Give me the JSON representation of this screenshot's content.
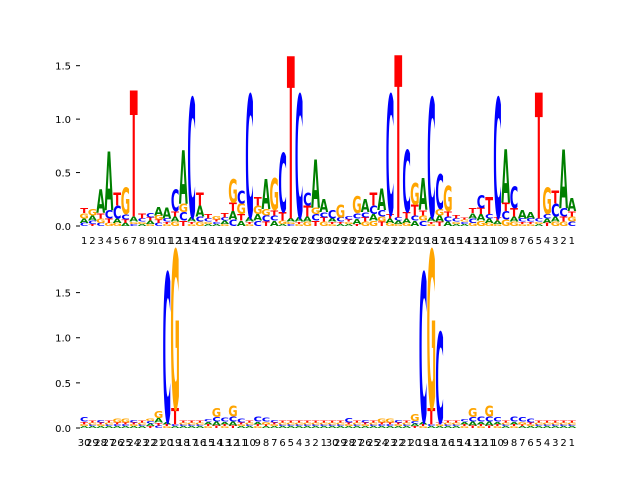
{
  "colors": {
    "A": "#008000",
    "C": "#0000ff",
    "G": "#ffa500",
    "T": "#ff0000",
    "axis": "#000000"
  },
  "chart_data": [
    {
      "type": "sequence-logo",
      "title": "",
      "xlabel": "",
      "ylabel": "",
      "ylim": [
        0,
        1.6
      ],
      "yticks": [
        "0.0",
        "0.5",
        "1.0",
        "1.5"
      ],
      "xtick_labels": [
        "1",
        "2",
        "3",
        "4",
        "5",
        "6",
        "7",
        "8",
        "9",
        "10",
        "11",
        "12",
        "13",
        "14",
        "15",
        "16",
        "17",
        "18",
        "19",
        "20",
        "21",
        "22",
        "23",
        "24",
        "25",
        "26",
        "27",
        "28",
        "29",
        "30",
        "30",
        "29",
        "28",
        "27",
        "26",
        "25",
        "24",
        "23",
        "22",
        "21",
        "20",
        "19",
        "18",
        "17",
        "16",
        "15",
        "14",
        "13",
        "12",
        "11",
        "10",
        "9",
        "8",
        "7",
        "6",
        "5",
        "4",
        "3",
        "2",
        "1"
      ],
      "positions": [
        {
          "A": 0.04,
          "C": 0.03,
          "G": 0.05,
          "T": 0.05
        },
        {
          "A": 0.05,
          "C": 0.03,
          "G": 0.06,
          "T": 0.02
        },
        {
          "A": 0.22,
          "C": 0.03,
          "G": 0.04,
          "T": 0.05
        },
        {
          "A": 0.55,
          "C": 0.08,
          "G": 0.03,
          "T": 0.04
        },
        {
          "A": 0.04,
          "C": 0.12,
          "G": 0.03,
          "T": 0.12
        },
        {
          "A": 0.03,
          "C": 0.05,
          "G": 0.25,
          "T": 0.03
        },
        {
          "A": 0.05,
          "C": 0.02,
          "G": 0.02,
          "T": 1.18
        },
        {
          "A": 0.02,
          "C": 0.03,
          "G": 0.02,
          "T": 0.05
        },
        {
          "A": 0.03,
          "C": 0.04,
          "G": 0.02,
          "T": 0.03
        },
        {
          "A": 0.08,
          "C": 0.03,
          "G": 0.04,
          "T": 0.03
        },
        {
          "A": 0.1,
          "C": 0.03,
          "G": 0.02,
          "T": 0.02
        },
        {
          "A": 0.05,
          "C": 0.2,
          "G": 0.04,
          "T": 0.05
        },
        {
          "A": 0.5,
          "C": 0.08,
          "G": 0.08,
          "T": 0.05
        },
        {
          "A": 0.04,
          "C": 1.12,
          "G": 0.02,
          "T": 0.02
        },
        {
          "A": 0.1,
          "C": 0.05,
          "G": 0.04,
          "T": 0.12
        },
        {
          "A": 0.02,
          "C": 0.03,
          "G": 0.02,
          "T": 0.04
        },
        {
          "A": 0.02,
          "C": 0.02,
          "G": 0.03,
          "T": 0.02
        },
        {
          "A": 0.03,
          "C": 0.03,
          "G": 0.02,
          "T": 0.04
        },
        {
          "A": 0.08,
          "C": 0.06,
          "G": 0.22,
          "T": 0.08
        },
        {
          "A": 0.05,
          "C": 0.12,
          "G": 0.1,
          "T": 0.06
        },
        {
          "A": 0.04,
          "C": 1.15,
          "G": 0.02,
          "T": 0.02
        },
        {
          "A": 0.06,
          "C": 0.05,
          "G": 0.08,
          "T": 0.08
        },
        {
          "A": 0.28,
          "C": 0.06,
          "G": 0.06,
          "T": 0.04
        },
        {
          "A": 0.05,
          "C": 0.05,
          "G": 0.3,
          "T": 0.05
        },
        {
          "A": 0.02,
          "C": 0.55,
          "G": 0.03,
          "T": 0.08
        },
        {
          "A": 0.03,
          "C": 0.02,
          "G": 0.02,
          "T": 1.52
        },
        {
          "A": 0.04,
          "C": 1.15,
          "G": 0.02,
          "T": 0.02
        },
        {
          "A": 0.05,
          "C": 0.12,
          "G": 0.04,
          "T": 0.1
        },
        {
          "A": 0.45,
          "C": 0.06,
          "G": 0.06,
          "T": 0.05
        },
        {
          "A": 0.12,
          "C": 0.05,
          "G": 0.04,
          "T": 0.04
        },
        {
          "A": 0.03,
          "C": 0.08,
          "G": 0.02,
          "T": 0.02
        },
        {
          "A": 0.02,
          "C": 0.04,
          "G": 0.12,
          "T": 0.02
        },
        {
          "A": 0.02,
          "C": 0.03,
          "G": 0.02,
          "T": 0.02
        },
        {
          "A": 0.05,
          "C": 0.05,
          "G": 0.16,
          "T": 0.02
        },
        {
          "A": 0.12,
          "C": 0.05,
          "G": 0.04,
          "T": 0.04
        },
        {
          "A": 0.06,
          "C": 0.08,
          "G": 0.05,
          "T": 0.12
        },
        {
          "A": 0.2,
          "C": 0.06,
          "G": 0.05,
          "T": 0.04
        },
        {
          "A": 0.04,
          "C": 1.12,
          "G": 0.03,
          "T": 0.04
        },
        {
          "A": 0.03,
          "C": 0.03,
          "G": 0.02,
          "T": 1.52
        },
        {
          "A": 0.04,
          "C": 0.58,
          "G": 0.03,
          "T": 0.06
        },
        {
          "A": 0.05,
          "C": 0.05,
          "G": 0.2,
          "T": 0.1
        },
        {
          "A": 0.3,
          "C": 0.05,
          "G": 0.05,
          "T": 0.05
        },
        {
          "A": 0.04,
          "C": 1.12,
          "G": 0.02,
          "T": 0.02
        },
        {
          "A": 0.06,
          "C": 0.32,
          "G": 0.06,
          "T": 0.04
        },
        {
          "A": 0.04,
          "C": 0.05,
          "G": 0.24,
          "T": 0.05
        },
        {
          "A": 0.02,
          "C": 0.03,
          "G": 0.02,
          "T": 0.03
        },
        {
          "A": 0.02,
          "C": 0.02,
          "G": 0.02,
          "T": 0.02
        },
        {
          "A": 0.05,
          "C": 0.04,
          "G": 0.03,
          "T": 0.05
        },
        {
          "A": 0.06,
          "C": 0.12,
          "G": 0.05,
          "T": 0.06
        },
        {
          "A": 0.04,
          "C": 0.04,
          "G": 0.03,
          "T": 0.16
        },
        {
          "A": 0.03,
          "C": 1.12,
          "G": 0.02,
          "T": 0.03
        },
        {
          "A": 0.5,
          "C": 0.08,
          "G": 0.06,
          "T": 0.08
        },
        {
          "A": 0.05,
          "C": 0.2,
          "G": 0.04,
          "T": 0.08
        },
        {
          "A": 0.08,
          "C": 0.03,
          "G": 0.02,
          "T": 0.02
        },
        {
          "A": 0.06,
          "C": 0.03,
          "G": 0.02,
          "T": 0.02
        },
        {
          "A": 0.02,
          "C": 0.03,
          "G": 0.02,
          "T": 1.18
        },
        {
          "A": 0.04,
          "C": 0.04,
          "G": 0.25,
          "T": 0.03
        },
        {
          "A": 0.05,
          "C": 0.12,
          "G": 0.04,
          "T": 0.12
        },
        {
          "A": 0.55,
          "C": 0.08,
          "G": 0.04,
          "T": 0.05
        },
        {
          "A": 0.12,
          "C": 0.04,
          "G": 0.05,
          "T": 0.05
        }
      ]
    },
    {
      "type": "sequence-logo",
      "title": "",
      "xlabel": "",
      "ylabel": "",
      "ylim": [
        0,
        1.95
      ],
      "yticks": [
        "0.0",
        "0.5",
        "1.0",
        "1.5"
      ],
      "xtick_labels": [
        "30",
        "29",
        "28",
        "27",
        "26",
        "25",
        "24",
        "23",
        "22",
        "21",
        "20",
        "19",
        "18",
        "17",
        "16",
        "15",
        "14",
        "13",
        "12",
        "11",
        "10",
        "9",
        "8",
        "7",
        "6",
        "5",
        "4",
        "3",
        "2",
        "1",
        "30",
        "29",
        "28",
        "27",
        "26",
        "25",
        "24",
        "23",
        "22",
        "21",
        "20",
        "19",
        "18",
        "17",
        "16",
        "15",
        "14",
        "13",
        "12",
        "11",
        "10",
        "9",
        "8",
        "7",
        "6",
        "5",
        "4",
        "3",
        "2",
        "1"
      ],
      "positions": [
        {
          "A": 0.02,
          "C": 0.05,
          "G": 0.02,
          "T": 0.03
        },
        {
          "A": 0.02,
          "C": 0.02,
          "G": 0.02,
          "T": 0.02
        },
        {
          "A": 0.02,
          "C": 0.03,
          "G": 0.02,
          "T": 0.02
        },
        {
          "A": 0.02,
          "C": 0.02,
          "G": 0.02,
          "T": 0.02
        },
        {
          "A": 0.02,
          "C": 0.02,
          "G": 0.04,
          "T": 0.02
        },
        {
          "A": 0.02,
          "C": 0.02,
          "G": 0.04,
          "T": 0.02
        },
        {
          "A": 0.02,
          "C": 0.03,
          "G": 0.02,
          "T": 0.02
        },
        {
          "A": 0.02,
          "C": 0.02,
          "G": 0.02,
          "T": 0.02
        },
        {
          "A": 0.03,
          "C": 0.03,
          "G": 0.03,
          "T": 0.02
        },
        {
          "A": 0.05,
          "C": 0.03,
          "G": 0.08,
          "T": 0.03
        },
        {
          "A": 0.03,
          "C": 1.65,
          "G": 0.02,
          "T": 0.02
        },
        {
          "A": 0.02,
          "C": 0.02,
          "G": 1.75,
          "T": 0.18
        },
        {
          "A": 0.02,
          "C": 0.02,
          "G": 0.02,
          "T": 0.02
        },
        {
          "A": 0.02,
          "C": 0.02,
          "G": 0.02,
          "T": 0.02
        },
        {
          "A": 0.02,
          "C": 0.02,
          "G": 0.02,
          "T": 0.02
        },
        {
          "A": 0.03,
          "C": 0.03,
          "G": 0.02,
          "T": 0.02
        },
        {
          "A": 0.04,
          "C": 0.05,
          "G": 0.1,
          "T": 0.03
        },
        {
          "A": 0.03,
          "C": 0.04,
          "G": 0.02,
          "T": 0.02
        },
        {
          "A": 0.04,
          "C": 0.06,
          "G": 0.12,
          "T": 0.03
        },
        {
          "A": 0.02,
          "C": 0.04,
          "G": 0.02,
          "T": 0.02
        },
        {
          "A": 0.02,
          "C": 0.02,
          "G": 0.02,
          "T": 0.02
        },
        {
          "A": 0.03,
          "C": 0.06,
          "G": 0.02,
          "T": 0.02
        },
        {
          "A": 0.02,
          "C": 0.04,
          "G": 0.03,
          "T": 0.02
        },
        {
          "A": 0.02,
          "C": 0.03,
          "G": 0.02,
          "T": 0.02
        },
        {
          "A": 0.02,
          "C": 0.02,
          "G": 0.02,
          "T": 0.02
        },
        {
          "A": 0.02,
          "C": 0.02,
          "G": 0.02,
          "T": 0.02
        },
        {
          "A": 0.02,
          "C": 0.02,
          "G": 0.02,
          "T": 0.02
        },
        {
          "A": 0.02,
          "C": 0.02,
          "G": 0.02,
          "T": 0.02
        },
        {
          "A": 0.02,
          "C": 0.02,
          "G": 0.02,
          "T": 0.02
        },
        {
          "A": 0.02,
          "C": 0.02,
          "G": 0.02,
          "T": 0.02
        },
        {
          "A": 0.02,
          "C": 0.02,
          "G": 0.02,
          "T": 0.02
        },
        {
          "A": 0.02,
          "C": 0.02,
          "G": 0.02,
          "T": 0.02
        },
        {
          "A": 0.02,
          "C": 0.05,
          "G": 0.02,
          "T": 0.02
        },
        {
          "A": 0.02,
          "C": 0.02,
          "G": 0.02,
          "T": 0.02
        },
        {
          "A": 0.02,
          "C": 0.03,
          "G": 0.02,
          "T": 0.02
        },
        {
          "A": 0.02,
          "C": 0.02,
          "G": 0.02,
          "T": 0.02
        },
        {
          "A": 0.02,
          "C": 0.02,
          "G": 0.04,
          "T": 0.02
        },
        {
          "A": 0.02,
          "C": 0.02,
          "G": 0.04,
          "T": 0.02
        },
        {
          "A": 0.02,
          "C": 0.03,
          "G": 0.02,
          "T": 0.02
        },
        {
          "A": 0.02,
          "C": 0.02,
          "G": 0.02,
          "T": 0.02
        },
        {
          "A": 0.03,
          "C": 0.03,
          "G": 0.08,
          "T": 0.02
        },
        {
          "A": 0.03,
          "C": 1.65,
          "G": 0.02,
          "T": 0.02
        },
        {
          "A": 0.02,
          "C": 0.02,
          "G": 1.75,
          "T": 0.18
        },
        {
          "A": 0.02,
          "C": 1.0,
          "G": 0.02,
          "T": 0.02
        },
        {
          "A": 0.02,
          "C": 0.02,
          "G": 0.02,
          "T": 0.02
        },
        {
          "A": 0.02,
          "C": 0.02,
          "G": 0.02,
          "T": 0.02
        },
        {
          "A": 0.03,
          "C": 0.03,
          "G": 0.02,
          "T": 0.02
        },
        {
          "A": 0.04,
          "C": 0.05,
          "G": 0.1,
          "T": 0.03
        },
        {
          "A": 0.03,
          "C": 0.06,
          "G": 0.02,
          "T": 0.02
        },
        {
          "A": 0.04,
          "C": 0.06,
          "G": 0.12,
          "T": 0.03
        },
        {
          "A": 0.03,
          "C": 0.05,
          "G": 0.02,
          "T": 0.02
        },
        {
          "A": 0.02,
          "C": 0.02,
          "G": 0.02,
          "T": 0.02
        },
        {
          "A": 0.03,
          "C": 0.06,
          "G": 0.02,
          "T": 0.02
        },
        {
          "A": 0.02,
          "C": 0.05,
          "G": 0.03,
          "T": 0.02
        },
        {
          "A": 0.02,
          "C": 0.04,
          "G": 0.02,
          "T": 0.02
        },
        {
          "A": 0.02,
          "C": 0.02,
          "G": 0.02,
          "T": 0.02
        },
        {
          "A": 0.02,
          "C": 0.02,
          "G": 0.02,
          "T": 0.02
        },
        {
          "A": 0.02,
          "C": 0.02,
          "G": 0.02,
          "T": 0.02
        },
        {
          "A": 0.02,
          "C": 0.02,
          "G": 0.02,
          "T": 0.02
        },
        {
          "A": 0.02,
          "C": 0.02,
          "G": 0.02,
          "T": 0.02
        }
      ]
    }
  ]
}
